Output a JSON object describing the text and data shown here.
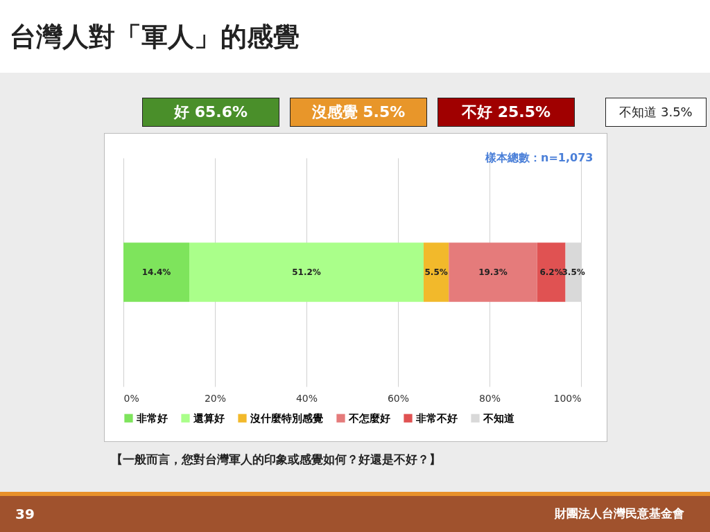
{
  "chart_data": {
    "type": "bar",
    "orientation": "horizontal",
    "stacked": true,
    "title": "台灣人對「軍人」的感覺",
    "categories": [
      null
    ],
    "series": [
      {
        "name": "非常好",
        "color": "#7ee45c",
        "values": [
          14.4
        ]
      },
      {
        "name": "還算好",
        "color": "#aaff8a",
        "values": [
          51.2
        ]
      },
      {
        "name": "沒什麼特別感覺",
        "color": "#f2b92b",
        "values": [
          5.5
        ]
      },
      {
        "name": "不怎麼好",
        "color": "#e57b7b",
        "values": [
          19.3
        ]
      },
      {
        "name": "非常不好",
        "color": "#e05252",
        "values": [
          6.2
        ]
      },
      {
        "name": "不知道",
        "color": "#d9d9d9",
        "values": [
          3.5
        ]
      }
    ],
    "xlim": [
      0,
      100
    ],
    "xticks": [
      {
        "value": 0,
        "label": "0%"
      },
      {
        "value": 20,
        "label": "20%"
      },
      {
        "value": 40,
        "label": "40%"
      },
      {
        "value": 60,
        "label": "60%"
      },
      {
        "value": 80,
        "label": "80%"
      },
      {
        "value": 100,
        "label": "100%"
      }
    ],
    "value_labels": [
      "14.4%",
      "51.2%",
      "5.5%",
      "19.3%",
      "6.2%",
      "3.5%"
    ],
    "grid": "x",
    "legend": "bottom",
    "tick_labels": "x",
    "annotations": [
      "好 65.6%",
      "沒感覺 5.5%",
      "不好 25.5%",
      "不知道 3.5%",
      "樣本總數：n=1,073",
      "【一般而言，您對台灣軍人的印象或感覺如何？好還是不好？】",
      "39",
      "財團法人台灣民意基金會"
    ]
  }
}
